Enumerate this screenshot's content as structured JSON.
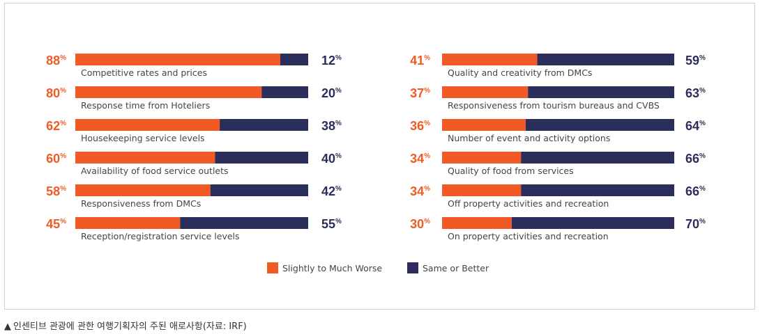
{
  "colors": {
    "worse": "#f15a24",
    "better": "#2b2d5a",
    "label": "#444444"
  },
  "chart_data": {
    "type": "bar",
    "orientation": "horizontal",
    "stacked": true,
    "percent_suffix": "%",
    "series": [
      {
        "name": "Slightly to Much Worse",
        "color": "#f15a24"
      },
      {
        "name": "Same or Better",
        "color": "#2b2d5a"
      }
    ],
    "legend_position": "bottom-center",
    "groups": [
      {
        "items": [
          {
            "label": "Competitive rates and prices",
            "worse": 88,
            "better": 12
          },
          {
            "label": "Response time from Hoteliers",
            "worse": 80,
            "better": 20
          },
          {
            "label": "Housekeeping service levels",
            "worse": 62,
            "better": 38
          },
          {
            "label": "Availability of food service outlets",
            "worse": 60,
            "better": 40
          },
          {
            "label": "Responsiveness from DMCs",
            "worse": 58,
            "better": 42
          },
          {
            "label": "Reception/registration service levels",
            "worse": 45,
            "better": 55
          }
        ]
      },
      {
        "items": [
          {
            "label": "Quality and creativity from DMCs",
            "worse": 41,
            "better": 59
          },
          {
            "label": "Responsiveness from tourism bureaus and CVBS",
            "worse": 37,
            "better": 63
          },
          {
            "label": "Number of event and activity options",
            "worse": 36,
            "better": 64
          },
          {
            "label": "Quality of food from services",
            "worse": 34,
            "better": 66
          },
          {
            "label": "Off property activities and recreation",
            "worse": 34,
            "better": 66
          },
          {
            "label": "On property activities and recreation",
            "worse": 30,
            "better": 70
          }
        ]
      }
    ]
  },
  "caption": {
    "marker": "▲",
    "text": "인센티브 관광에 관한 여행기획자의 주된 애로사항(자료: IRF)"
  }
}
